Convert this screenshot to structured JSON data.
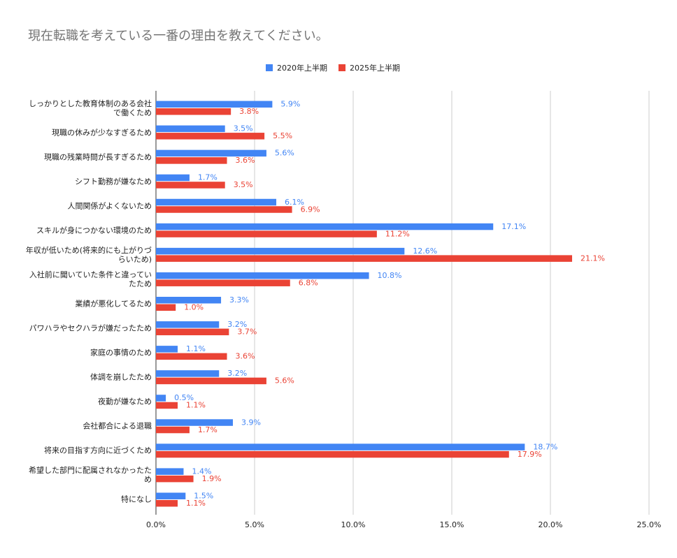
{
  "chart_data": {
    "type": "bar",
    "orientation": "horizontal",
    "title": "現在転職を考えている一番の理由を教えてください。",
    "categories": [
      "しっかりとした教育体制のある会社で働くため",
      "現職の休みが少なすぎるため",
      "現職の残業時間が長すぎるため",
      "シフト勤務が嫌なため",
      "人間関係がよくないため",
      "スキルが身につかない環境のため",
      "年収が低いため(将来的にも上がりづらいため)",
      "入社前に聞いていた条件と違っていたため",
      "業績が悪化してるため",
      "パワハラやセクハラが嫌だったため",
      "家庭の事情のため",
      "体調を崩したため",
      "夜勤が嫌なため",
      "会社都合による退職",
      "将来の目指す方向に近づくため",
      "希望した部門に配属されなかったため",
      "特になし"
    ],
    "series": [
      {
        "name": "2020年上半期",
        "color": "#4285f4",
        "values": [
          5.9,
          3.5,
          5.6,
          1.7,
          6.1,
          17.1,
          12.6,
          10.8,
          3.3,
          3.2,
          1.1,
          3.2,
          0.5,
          3.9,
          18.7,
          1.4,
          1.5
        ],
        "value_labels": [
          "5.9%",
          "3.5%",
          "5.6%",
          "1.7%",
          "6.1%",
          "17.1%",
          "12.6%",
          "10.8%",
          "3.3%",
          "3.2%",
          "1.1%",
          "3.2%",
          "0.5%",
          "3.9%",
          "18.7%",
          "1.4%",
          "1.5%"
        ]
      },
      {
        "name": "2025年上半期",
        "color": "#ea4335",
        "values": [
          3.8,
          5.5,
          3.6,
          3.5,
          6.9,
          11.2,
          21.1,
          6.8,
          1.0,
          3.7,
          3.6,
          5.6,
          1.1,
          1.7,
          17.9,
          1.9,
          1.1
        ],
        "value_labels": [
          "3.8%",
          "5.5%",
          "3.6%",
          "3.5%",
          "6.9%",
          "11.2%",
          "21.1%",
          "6.8%",
          "1.0%",
          "3.7%",
          "3.6%",
          "5.6%",
          "1.1%",
          "1.7%",
          "17.9%",
          "1.9%",
          "1.1%"
        ]
      }
    ],
    "xlim": [
      0,
      25
    ],
    "xticks": [
      {
        "value": 0,
        "label": "0.0%"
      },
      {
        "value": 5,
        "label": "5.0%"
      },
      {
        "value": 10,
        "label": "10.0%"
      },
      {
        "value": 15,
        "label": "15.0%"
      },
      {
        "value": 20,
        "label": "20.0%"
      },
      {
        "value": 25,
        "label": "25.0%"
      }
    ],
    "grid": true,
    "legend": "top"
  }
}
